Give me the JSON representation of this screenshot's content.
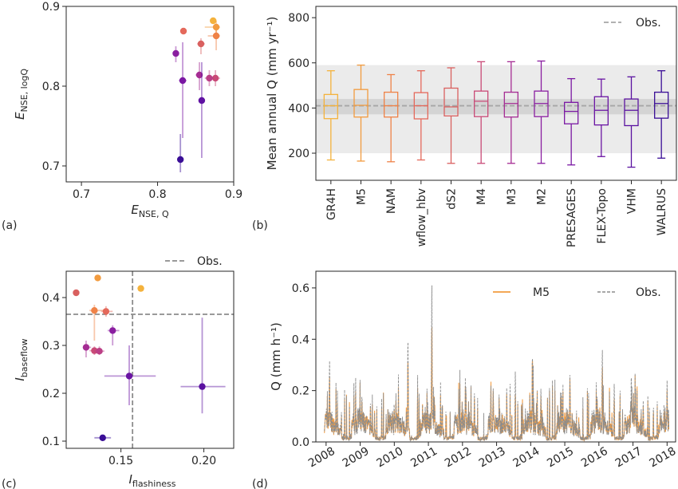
{
  "panel_labels": [
    "(a)",
    "(b)",
    "(c)",
    "(d)"
  ],
  "chart_data": [
    {
      "panel": "(a)",
      "type": "scatter",
      "xlabel": "E",
      "xlabel_sub": "NSE, Q",
      "ylabel": "E",
      "ylabel_sub": "NSE, logQ",
      "xlim": [
        0.68,
        0.9
      ],
      "ylim": [
        0.68,
        0.9
      ],
      "xticks": [
        0.7,
        0.8,
        0.9
      ],
      "yticks": [
        0.7,
        0.8,
        0.9
      ],
      "xtick_labels": [
        "0.7",
        "0.8",
        "0.9"
      ],
      "ytick_labels": [
        "0.7",
        "0.8",
        "0.9"
      ],
      "points": [
        {
          "x": 0.873,
          "y": 0.882,
          "color": "#f4b23c",
          "xerr": [
            0.873,
            0.873
          ],
          "yerr": [
            0.882,
            0.882
          ]
        },
        {
          "x": 0.877,
          "y": 0.874,
          "color": "#f29b3f",
          "xerr": [
            0.862,
            0.882
          ],
          "yerr": [
            0.86,
            0.882
          ]
        },
        {
          "x": 0.877,
          "y": 0.863,
          "color": "#ef8247",
          "xerr": [
            0.866,
            0.882
          ],
          "yerr": [
            0.845,
            0.87
          ]
        },
        {
          "x": 0.834,
          "y": 0.869,
          "color": "#e4695b",
          "xerr": [
            0.834,
            0.834
          ],
          "yerr": [
            0.869,
            0.869
          ]
        },
        {
          "x": 0.857,
          "y": 0.853,
          "color": "#d9605f",
          "xerr": [
            0.852,
            0.862
          ],
          "yerr": [
            0.84,
            0.86
          ]
        },
        {
          "x": 0.876,
          "y": 0.81,
          "color": "#c94a77",
          "xerr": [
            0.87,
            0.882
          ],
          "yerr": [
            0.8,
            0.82
          ]
        },
        {
          "x": 0.868,
          "y": 0.81,
          "color": "#bb3f86",
          "xerr": [
            0.862,
            0.874
          ],
          "yerr": [
            0.8,
            0.82
          ]
        },
        {
          "x": 0.855,
          "y": 0.814,
          "color": "#a52c93",
          "xerr": [
            0.85,
            0.858
          ],
          "yerr": [
            0.795,
            0.83
          ]
        },
        {
          "x": 0.824,
          "y": 0.841,
          "color": "#8a1ea0",
          "xerr": [
            0.82,
            0.828
          ],
          "yerr": [
            0.83,
            0.85
          ]
        },
        {
          "x": 0.833,
          "y": 0.807,
          "color": "#7a17a3",
          "xerr": [
            0.828,
            0.838
          ],
          "yerr": [
            0.735,
            0.855
          ]
        },
        {
          "x": 0.858,
          "y": 0.782,
          "color": "#5f11a2",
          "xerr": [
            0.854,
            0.862
          ],
          "yerr": [
            0.71,
            0.83
          ]
        },
        {
          "x": 0.83,
          "y": 0.708,
          "color": "#3a0e96",
          "xerr": [
            0.826,
            0.834
          ],
          "yerr": [
            0.692,
            0.74
          ]
        }
      ]
    },
    {
      "panel": "(b)",
      "type": "box",
      "ylabel": "Mean annual Q (mm yr⁻¹)",
      "ylim": [
        80,
        850
      ],
      "yticks": [
        200,
        400,
        600,
        800
      ],
      "ytick_labels": [
        "200",
        "400",
        "600",
        "800"
      ],
      "obs_line": 410,
      "obs_label": "Obs.",
      "obs_band_outer": [
        200,
        590
      ],
      "obs_band_inner": [
        372,
        440
      ],
      "categories": [
        "GR4H",
        "M5",
        "NAM",
        "wflow_hbv",
        "dS2",
        "M4",
        "M3",
        "M2",
        "PRESAGES",
        "FLEX-Topo",
        "VHM",
        "WALRUS"
      ],
      "boxes": [
        {
          "min": 170,
          "q1": 353,
          "med": 410,
          "q3": 460,
          "max": 565,
          "color": "#f4b23c"
        },
        {
          "min": 165,
          "q1": 360,
          "med": 412,
          "q3": 482,
          "max": 590,
          "color": "#f29b3f"
        },
        {
          "min": 162,
          "q1": 360,
          "med": 410,
          "q3": 470,
          "max": 548,
          "color": "#ef8247"
        },
        {
          "min": 170,
          "q1": 352,
          "med": 410,
          "q3": 468,
          "max": 565,
          "color": "#e4695b"
        },
        {
          "min": 155,
          "q1": 365,
          "med": 405,
          "q3": 488,
          "max": 578,
          "color": "#d9605f"
        },
        {
          "min": 155,
          "q1": 362,
          "med": 430,
          "q3": 475,
          "max": 605,
          "color": "#c94a77"
        },
        {
          "min": 155,
          "q1": 360,
          "med": 420,
          "q3": 470,
          "max": 605,
          "color": "#a52c93"
        },
        {
          "min": 155,
          "q1": 362,
          "med": 420,
          "q3": 475,
          "max": 608,
          "color": "#8a1ea0"
        },
        {
          "min": 148,
          "q1": 330,
          "med": 385,
          "q3": 425,
          "max": 530,
          "color": "#7a17a3"
        },
        {
          "min": 185,
          "q1": 325,
          "med": 390,
          "q3": 450,
          "max": 528,
          "color": "#6a14a3"
        },
        {
          "min": 138,
          "q1": 322,
          "med": 390,
          "q3": 440,
          "max": 538,
          "color": "#5a12a0"
        },
        {
          "min": 178,
          "q1": 355,
          "med": 420,
          "q3": 470,
          "max": 565,
          "color": "#3a0e96"
        }
      ]
    },
    {
      "panel": "(c)",
      "type": "scatter",
      "xlabel": "I",
      "xlabel_sub": "flashiness",
      "ylabel": "I",
      "ylabel_sub": "baseflow",
      "xlim": [
        0.117,
        0.218
      ],
      "ylim": [
        0.085,
        0.455
      ],
      "xticks": [
        0.15,
        0.2
      ],
      "yticks": [
        0.1,
        0.2,
        0.3,
        0.4
      ],
      "xtick_labels": [
        "0.15",
        "0.20"
      ],
      "ytick_labels": [
        "0.1",
        "0.2",
        "0.3",
        "0.4"
      ],
      "obs_x": 0.157,
      "obs_y": 0.365,
      "obs_label": "Obs.",
      "points": [
        {
          "x": 0.162,
          "y": 0.419,
          "color": "#f4b23c",
          "xerr": [
            0.162,
            0.162
          ],
          "yerr": [
            0.419,
            0.419
          ]
        },
        {
          "x": 0.136,
          "y": 0.441,
          "color": "#f29b3f",
          "xerr": [
            0.136,
            0.136
          ],
          "yerr": [
            0.441,
            0.441
          ]
        },
        {
          "x": 0.134,
          "y": 0.373,
          "color": "#ef8247",
          "xerr": [
            0.131,
            0.14
          ],
          "yerr": [
            0.31,
            0.385
          ]
        },
        {
          "x": 0.141,
          "y": 0.371,
          "color": "#e4695b",
          "xerr": [
            0.138,
            0.145
          ],
          "yerr": [
            0.36,
            0.382
          ]
        },
        {
          "x": 0.123,
          "y": 0.41,
          "color": "#d9605f",
          "xerr": [
            0.123,
            0.123
          ],
          "yerr": [
            0.41,
            0.41
          ]
        },
        {
          "x": 0.134,
          "y": 0.289,
          "color": "#c94a77",
          "xerr": [
            0.131,
            0.137
          ],
          "yerr": [
            0.28,
            0.298
          ]
        },
        {
          "x": 0.137,
          "y": 0.288,
          "color": "#bb3f86",
          "xerr": [
            0.134,
            0.14
          ],
          "yerr": [
            0.28,
            0.298
          ]
        },
        {
          "x": 0.129,
          "y": 0.296,
          "color": "#a52c93",
          "xerr": [
            0.127,
            0.132
          ],
          "yerr": [
            0.275,
            0.31
          ]
        },
        {
          "x": 0.145,
          "y": 0.331,
          "color": "#8a1ea0",
          "xerr": [
            0.142,
            0.149
          ],
          "yerr": [
            0.3,
            0.342
          ]
        },
        {
          "x": 0.155,
          "y": 0.236,
          "color": "#6a14a3",
          "xerr": [
            0.14,
            0.171
          ],
          "yerr": [
            0.175,
            0.3
          ]
        },
        {
          "x": 0.199,
          "y": 0.214,
          "color": "#5a12a0",
          "xerr": [
            0.186,
            0.213
          ],
          "yerr": [
            0.158,
            0.358
          ]
        },
        {
          "x": 0.139,
          "y": 0.107,
          "color": "#3a0e96",
          "xerr": [
            0.134,
            0.144
          ],
          "yerr": [
            0.107,
            0.107
          ]
        }
      ]
    },
    {
      "panel": "(d)",
      "type": "line",
      "ylabel": "Q (mm h⁻¹)",
      "ylim": [
        0,
        0.665
      ],
      "yticks": [
        0.0,
        0.2,
        0.4,
        0.6
      ],
      "ytick_labels": [
        "0.0",
        "0.2",
        "0.4",
        "0.6"
      ],
      "xlim": [
        2007.7,
        2018.25
      ],
      "xticks": [
        2008,
        2009,
        2010,
        2011,
        2012,
        2013,
        2014,
        2015,
        2016,
        2017,
        2018
      ],
      "xtick_labels": [
        "2008",
        "2009",
        "2010",
        "2011",
        "2012",
        "2013",
        "2014",
        "2015",
        "2016",
        "2017",
        "2018"
      ],
      "series": [
        {
          "name": "M5",
          "color": "#f29b3f",
          "style": "solid"
        },
        {
          "name": "Obs.",
          "color": "#8c8c8c",
          "style": "dashed"
        }
      ],
      "peaks": [
        {
          "t": 2008.1,
          "m5": 0.26,
          "obs": 0.32
        },
        {
          "t": 2008.45,
          "m5": 0.1,
          "obs": 0.12
        },
        {
          "t": 2009.05,
          "m5": 0.17,
          "obs": 0.19
        },
        {
          "t": 2009.3,
          "m5": 0.14,
          "obs": 0.15
        },
        {
          "t": 2010.05,
          "m5": 0.16,
          "obs": 0.19
        },
        {
          "t": 2010.4,
          "m5": 0.33,
          "obs": 0.41
        },
        {
          "t": 2011.1,
          "m5": 0.47,
          "obs": 0.64
        },
        {
          "t": 2011.4,
          "m5": 0.12,
          "obs": 0.14
        },
        {
          "t": 2012.1,
          "m5": 0.2,
          "obs": 0.22
        },
        {
          "t": 2012.35,
          "m5": 0.17,
          "obs": 0.19
        },
        {
          "t": 2012.9,
          "m5": 0.2,
          "obs": 0.21
        },
        {
          "t": 2013.3,
          "m5": 0.16,
          "obs": 0.18
        },
        {
          "t": 2013.55,
          "m5": 0.19,
          "obs": 0.28
        },
        {
          "t": 2014.05,
          "m5": 0.34,
          "obs": 0.35
        },
        {
          "t": 2014.3,
          "m5": 0.18,
          "obs": 0.21
        },
        {
          "t": 2014.9,
          "m5": 0.19,
          "obs": 0.2
        },
        {
          "t": 2015.15,
          "m5": 0.25,
          "obs": 0.26
        },
        {
          "t": 2016.1,
          "m5": 0.3,
          "obs": 0.37
        },
        {
          "t": 2016.45,
          "m5": 0.17,
          "obs": 0.23
        },
        {
          "t": 2016.95,
          "m5": 0.17,
          "obs": 0.27
        },
        {
          "t": 2017.3,
          "m5": 0.14,
          "obs": 0.16
        },
        {
          "t": 2017.6,
          "m5": 0.12,
          "obs": 0.14
        },
        {
          "t": 2018.0,
          "m5": 0.2,
          "obs": 0.24
        }
      ]
    }
  ]
}
